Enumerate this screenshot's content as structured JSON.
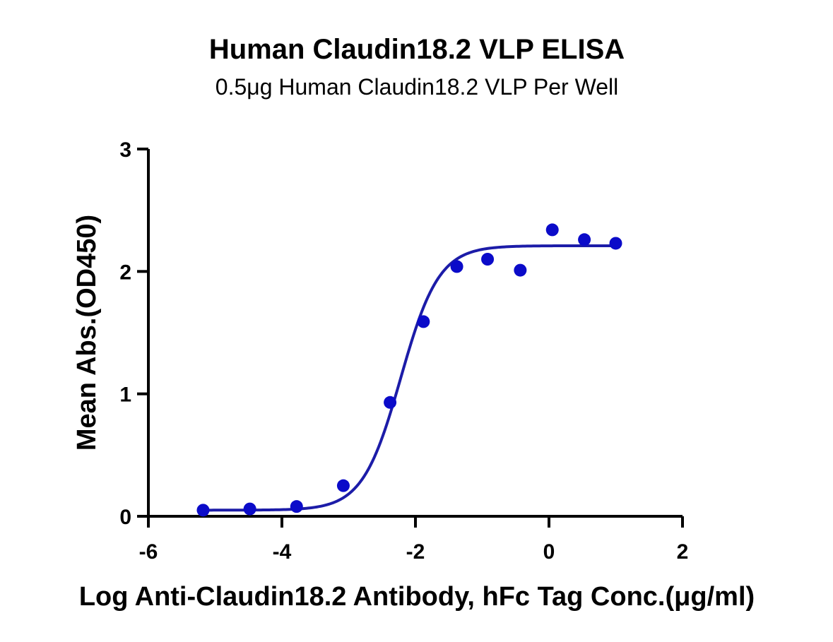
{
  "chart_data": {
    "type": "scatter",
    "title": "Human Claudin18.2 VLP ELISA",
    "subtitle": "0.5μg Human Claudin18.2 VLP Per Well",
    "xlabel": "Log Anti-Claudin18.2 Antibody, hFc Tag Conc.(μg/ml)",
    "ylabel": "Mean Abs.(OD450)",
    "xlim": [
      -6,
      2
    ],
    "ylim": [
      0,
      3
    ],
    "x_ticks": [
      -6,
      -4,
      -2,
      0,
      2
    ],
    "y_ticks": [
      0,
      1,
      2,
      3
    ],
    "grid": false,
    "legend": "none",
    "series": [
      {
        "x": [
          -5.18,
          -4.48,
          -3.78,
          -3.08,
          -2.38,
          -1.88,
          -1.38,
          -0.92,
          -0.43,
          0.05,
          0.53,
          1.0
        ],
        "y": [
          0.05,
          0.06,
          0.08,
          0.25,
          0.93,
          1.59,
          2.04,
          2.1,
          2.01,
          2.34,
          2.26,
          2.23
        ],
        "color": "#0b0bc9"
      }
    ],
    "fit": {
      "model": "4PL",
      "bottom": 0.05,
      "top": 2.21,
      "logEC50": -2.22,
      "hill": 1.52,
      "x_range": [
        -5.18,
        1.0
      ],
      "color": "#1c1ca8"
    }
  }
}
